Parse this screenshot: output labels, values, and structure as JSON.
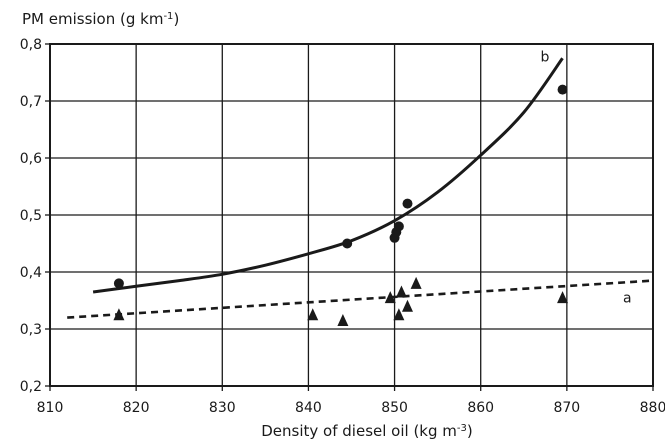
{
  "chart_data": {
    "type": "scatter",
    "title": "",
    "ylabel_parts": {
      "base": "PM emission (g km",
      "sup": "-1",
      "end": ")"
    },
    "xlabel_parts": {
      "base": "Density of diesel oil (kg m",
      "sup": "-3",
      "end": ")"
    },
    "xlim": [
      810,
      880
    ],
    "ylim": [
      0.2,
      0.8
    ],
    "xticks": [
      810,
      820,
      830,
      840,
      850,
      860,
      870,
      880
    ],
    "yticks": [
      0.2,
      0.3,
      0.4,
      0.5,
      0.6,
      0.7,
      0.8
    ],
    "xtick_labels": [
      "810",
      "820",
      "830",
      "840",
      "850",
      "860",
      "870",
      "880"
    ],
    "ytick_labels": [
      "0,2",
      "0,3",
      "0,4",
      "0,5",
      "0,6",
      "0,7",
      "0,8"
    ],
    "grid": true,
    "series": [
      {
        "name": "b",
        "marker": "circle",
        "points": [
          {
            "x": 818,
            "y": 0.38
          },
          {
            "x": 844.5,
            "y": 0.45
          },
          {
            "x": 850,
            "y": 0.46
          },
          {
            "x": 850.2,
            "y": 0.47
          },
          {
            "x": 850.5,
            "y": 0.48
          },
          {
            "x": 851.5,
            "y": 0.52
          },
          {
            "x": 869.5,
            "y": 0.72
          }
        ],
        "fit": {
          "style": "solid",
          "points": [
            {
              "x": 815,
              "y": 0.365
            },
            {
              "x": 820,
              "y": 0.375
            },
            {
              "x": 825,
              "y": 0.385
            },
            {
              "x": 830,
              "y": 0.396
            },
            {
              "x": 835,
              "y": 0.412
            },
            {
              "x": 840,
              "y": 0.432
            },
            {
              "x": 845,
              "y": 0.455
            },
            {
              "x": 850,
              "y": 0.49
            },
            {
              "x": 855,
              "y": 0.54
            },
            {
              "x": 860,
              "y": 0.605
            },
            {
              "x": 865,
              "y": 0.68
            },
            {
              "x": 869.5,
              "y": 0.775
            }
          ]
        }
      },
      {
        "name": "a",
        "marker": "triangle",
        "points": [
          {
            "x": 818,
            "y": 0.325
          },
          {
            "x": 840.5,
            "y": 0.325
          },
          {
            "x": 844,
            "y": 0.315
          },
          {
            "x": 849.5,
            "y": 0.355
          },
          {
            "x": 850.5,
            "y": 0.325
          },
          {
            "x": 850.8,
            "y": 0.365
          },
          {
            "x": 851.5,
            "y": 0.34
          },
          {
            "x": 852.5,
            "y": 0.38
          },
          {
            "x": 869.5,
            "y": 0.355
          }
        ],
        "fit": {
          "style": "dashed",
          "points": [
            {
              "x": 812,
              "y": 0.32
            },
            {
              "x": 880,
              "y": 0.385
            }
          ]
        }
      }
    ]
  }
}
